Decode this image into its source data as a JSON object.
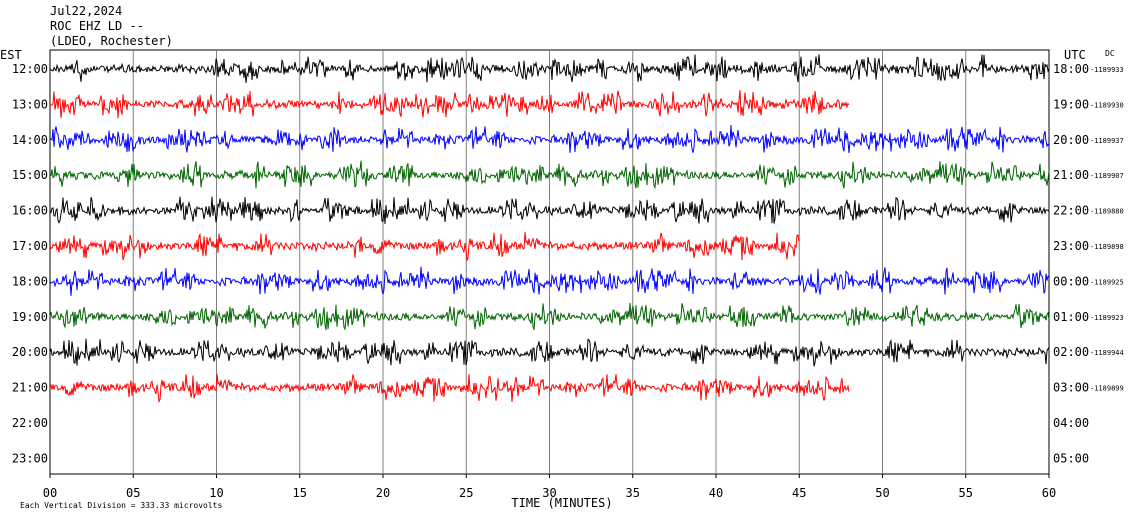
{
  "header": {
    "line1": "Jul22,2024",
    "line2": "ROC EHZ LD --",
    "line3": "(LDEO, Rochester)"
  },
  "labels": {
    "left_axis": "EST",
    "right_axis": "UTC",
    "dc": "DC",
    "x_title": "TIME (MINUTES)",
    "footer": "Each Vertical Division = 333.33 microvolts"
  },
  "colors": {
    "black": "#000000",
    "red": "#ff0000",
    "blue": "#0000ff",
    "green": "#006400",
    "grid": "#808080"
  },
  "chart_data": {
    "type": "line",
    "title": "Jul22,2024 ROC EHZ LD -- (LDEO, Rochester)",
    "xlabel": "TIME (MINUTES)",
    "xlim": [
      0,
      60
    ],
    "x_ticks": [
      "00",
      "05",
      "10",
      "15",
      "20",
      "25",
      "30",
      "35",
      "40",
      "45",
      "50",
      "55",
      "60"
    ],
    "vertical_division": "333.33 microvolts",
    "grid": true,
    "rows": [
      {
        "est": "12:00",
        "utc": "18:00",
        "dc": "-1189933",
        "color": "black",
        "end_minute": 60
      },
      {
        "est": "13:00",
        "utc": "19:00",
        "dc": "-1189930",
        "color": "red",
        "end_minute": 48
      },
      {
        "est": "14:00",
        "utc": "20:00",
        "dc": "-1189937",
        "color": "blue",
        "end_minute": 60
      },
      {
        "est": "15:00",
        "utc": "21:00",
        "dc": "-1189907",
        "color": "green",
        "end_minute": 60
      },
      {
        "est": "16:00",
        "utc": "22:00",
        "dc": "-1189880",
        "color": "black",
        "end_minute": 60
      },
      {
        "est": "17:00",
        "utc": "23:00",
        "dc": "-1189898",
        "color": "red",
        "end_minute": 45
      },
      {
        "est": "18:00",
        "utc": "00:00",
        "dc": "-1189925",
        "color": "blue",
        "end_minute": 60
      },
      {
        "est": "19:00",
        "utc": "01:00",
        "dc": "-1189923",
        "color": "green",
        "end_minute": 60
      },
      {
        "est": "20:00",
        "utc": "02:00",
        "dc": "-1189944",
        "color": "black",
        "end_minute": 60
      },
      {
        "est": "21:00",
        "utc": "03:00",
        "dc": "-1189899",
        "color": "red",
        "end_minute": 48
      },
      {
        "est": "22:00",
        "utc": "04:00",
        "dc": "",
        "color": "",
        "end_minute": 0
      },
      {
        "est": "23:00",
        "utc": "05:00",
        "dc": "",
        "color": "",
        "end_minute": 0
      }
    ]
  }
}
